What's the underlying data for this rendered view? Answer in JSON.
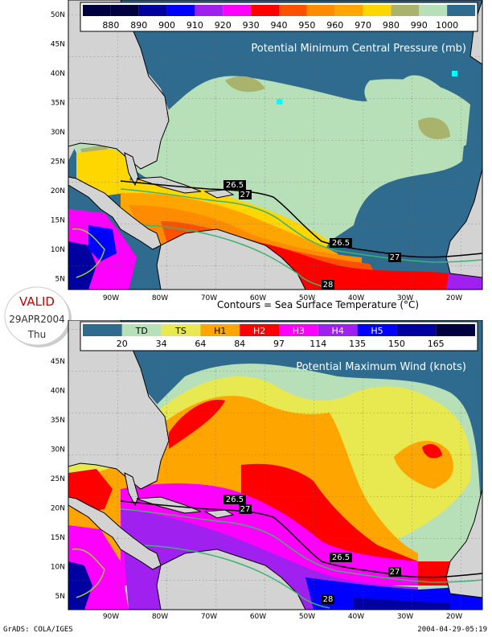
{
  "top_map": {
    "title": "Potential Minimum Central Pressure (mb)",
    "legend_labels": [
      "880",
      "890",
      "900",
      "910",
      "920",
      "930",
      "940",
      "950",
      "960",
      "970",
      "980",
      "990",
      "1000"
    ],
    "legend_colors": [
      "#000040",
      "#0000a0",
      "#0000ff",
      "#a020f0",
      "#ff00ff",
      "#ff0000",
      "#ff5000",
      "#ff8c00",
      "#ffa500",
      "#ffd700",
      "#a9b36b",
      "#b8e0b8",
      "#2f6b8f"
    ],
    "lat_labels": [
      "50N",
      "45N",
      "40N",
      "35N",
      "30N",
      "25N",
      "20N",
      "15N",
      "10N",
      "5N"
    ],
    "lon_labels": [
      "90W",
      "80W",
      "70W",
      "60W",
      "50W",
      "40W",
      "30W",
      "20W"
    ],
    "contour_labels": [
      "26.5",
      "27",
      "26.5",
      "27",
      "28"
    ]
  },
  "caption": "Contours = Sea Surface Temperature (°C)",
  "valid": {
    "label": "VALID",
    "date": "29APR2004",
    "day": "Thu"
  },
  "bottom_map": {
    "title": "Potential Maximum Wind (knots)",
    "legend_categories": [
      "TD",
      "TS",
      "H1",
      "H2",
      "H3",
      "H4",
      "H5"
    ],
    "legend_values": [
      "20",
      "34",
      "64",
      "84",
      "97",
      "114",
      "135",
      "150",
      "165"
    ],
    "legend_colors": [
      "#2f6b8f",
      "#b8e0b8",
      "#e8e850",
      "#ffa500",
      "#ff0000",
      "#ff00ff",
      "#a020f0",
      "#0000ff",
      "#0000a0",
      "#000040"
    ],
    "lat_labels": [
      "45N",
      "40N",
      "35N",
      "30N",
      "25N",
      "20N",
      "15N",
      "10N",
      "5N"
    ],
    "lon_labels": [
      "90W",
      "80W",
      "70W",
      "60W",
      "50W",
      "40W",
      "30W",
      "20W"
    ],
    "contour_labels": [
      "26.5",
      "27",
      "26.5",
      "27",
      "28"
    ]
  },
  "footer": {
    "left": "GrADS: COLA/IGES",
    "right": "2004-04-29-05:19"
  }
}
